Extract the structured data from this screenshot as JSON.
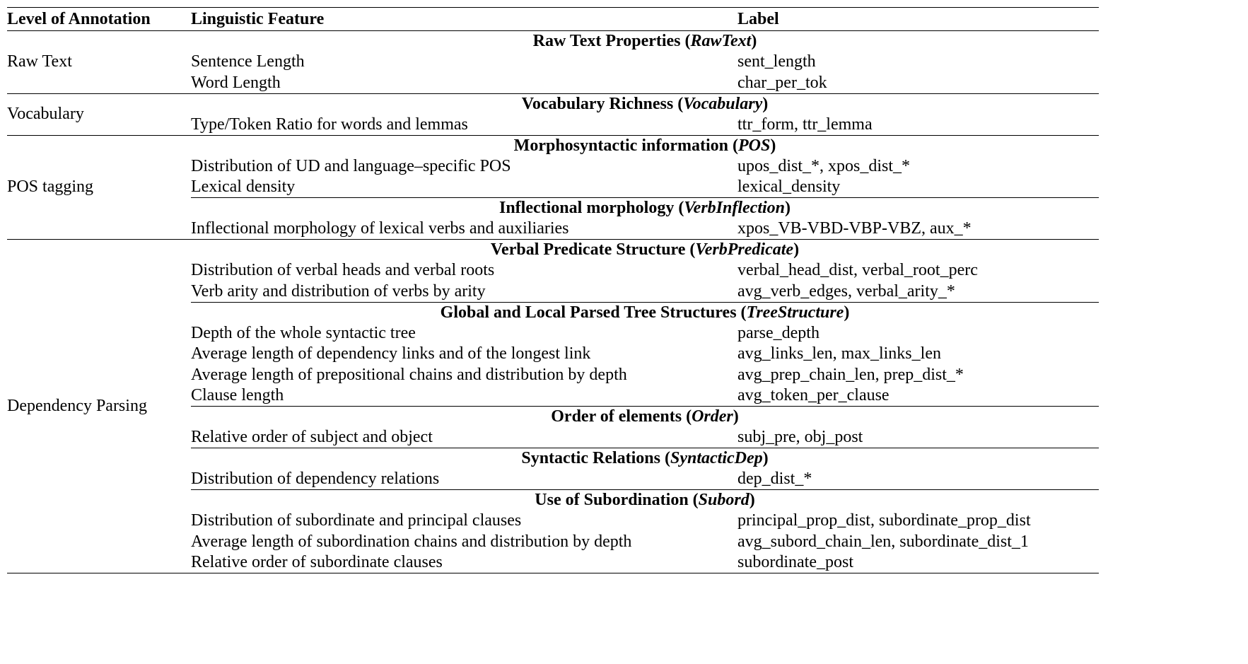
{
  "table": {
    "headers": [
      "Level of Annotation",
      "Linguistic Feature",
      "Label"
    ],
    "sections": [
      {
        "level": "Raw Text",
        "groups": [
          {
            "title": "Raw Text Properties",
            "tag": "RawText",
            "rows": [
              {
                "feature": "Sentence Length",
                "label": "sent_length"
              },
              {
                "feature": "Word Length",
                "label": "char_per_tok"
              }
            ]
          }
        ]
      },
      {
        "level": "Vocabulary",
        "groups": [
          {
            "title": "Vocabulary Richness",
            "tag": "Vocabulary",
            "rows": [
              {
                "feature": "Type/Token Ratio for words and lemmas",
                "label": "ttr_form, ttr_lemma"
              }
            ]
          }
        ]
      },
      {
        "level": "POS tagging",
        "groups": [
          {
            "title": "Morphosyntactic information",
            "tag": "POS",
            "rows": [
              {
                "feature": "Distribution of UD and language–specific POS",
                "label": "upos_dist_*, xpos_dist_*"
              },
              {
                "feature": "Lexical density",
                "label": "lexical_density"
              }
            ]
          },
          {
            "title": "Inflectional morphology",
            "tag": "VerbInflection",
            "rows": [
              {
                "feature": "Inflectional morphology of lexical verbs and auxiliaries",
                "label": "xpos_VB-VBD-VBP-VBZ, aux_*"
              }
            ]
          }
        ]
      },
      {
        "level": "Dependency Parsing",
        "groups": [
          {
            "title": "Verbal Predicate Structure",
            "tag": "VerbPredicate",
            "rows": [
              {
                "feature": "Distribution of verbal heads and verbal roots",
                "label": "verbal_head_dist, verbal_root_perc"
              },
              {
                "feature": "Verb arity and distribution of verbs by arity",
                "label": "avg_verb_edges, verbal_arity_*"
              }
            ]
          },
          {
            "title": "Global and Local Parsed Tree Structures",
            "tag": "TreeStructure",
            "rows": [
              {
                "feature": "Depth of the whole syntactic tree",
                "label": "parse_depth"
              },
              {
                "feature": "Average length of dependency links and of the longest link",
                "label": "avg_links_len, max_links_len"
              },
              {
                "feature": "Average length of prepositional chains and distribution by depth",
                "label": "avg_prep_chain_len, prep_dist_*"
              },
              {
                "feature": "Clause length",
                "label": "avg_token_per_clause"
              }
            ]
          },
          {
            "title": "Order of elements",
            "tag": "Order",
            "rows": [
              {
                "feature": "Relative order of subject and object",
                "label": "subj_pre, obj_post"
              }
            ]
          },
          {
            "title": "Syntactic Relations",
            "tag": "SyntacticDep",
            "rows": [
              {
                "feature": "Distribution of dependency relations",
                "label": "dep_dist_*"
              }
            ]
          },
          {
            "title": "Use of Subordination",
            "tag": "Subord",
            "rows": [
              {
                "feature": "Distribution of subordinate and principal clauses",
                "label": "principal_prop_dist, subordinate_prop_dist"
              },
              {
                "feature": "Average length of subordination chains and distribution by depth",
                "label": "avg_subord_chain_len, subordinate_dist_1"
              },
              {
                "feature": "Relative order of subordinate clauses",
                "label": "subordinate_post"
              }
            ]
          }
        ]
      }
    ]
  }
}
